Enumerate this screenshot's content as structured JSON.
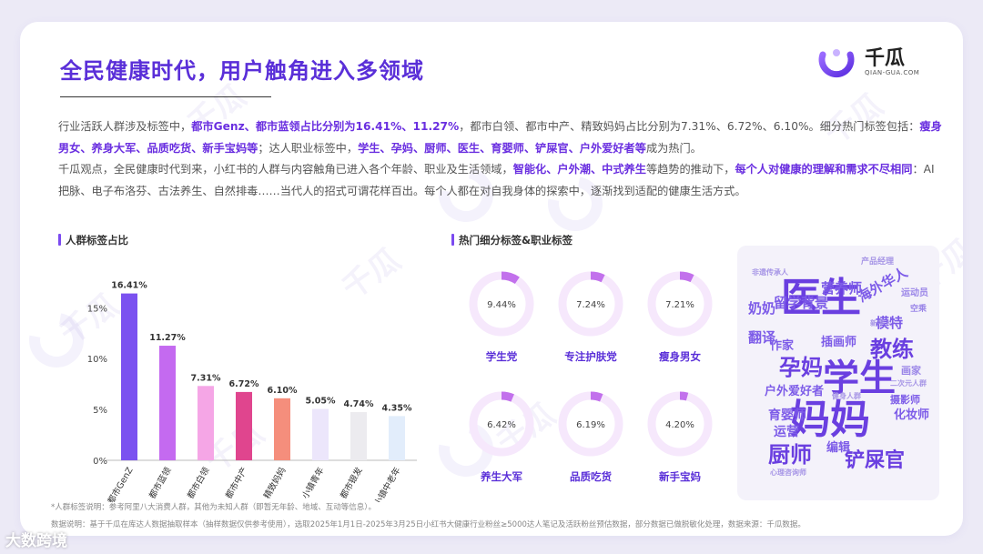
{
  "page": {
    "title": "全民健康时代，用户触角进入多领域",
    "logo": {
      "cn": "千瓜",
      "en": "QIAN-GUA.COM"
    },
    "watermark_text": "千瓜",
    "paragraph_segments": [
      {
        "t": "行业活跃人群涉及标签中，",
        "hl": false
      },
      {
        "t": "都市Genz、都市蓝领占比分别为16.41%、11.27%",
        "hl": true
      },
      {
        "t": "，都市白领、都市中产、精致妈妈占比分别为7.31%、6.72%、6.10%。细分热门标签包括：",
        "hl": false
      },
      {
        "t": "瘦身男女、养身大军、品质吃货、新手宝妈等",
        "hl": true
      },
      {
        "t": "；达人职业标签中，",
        "hl": false
      },
      {
        "t": "学生、孕妈、厨师、医生、育婴师、铲屎官、户外爱好者等",
        "hl": true
      },
      {
        "t": "成为热门。",
        "hl": false
      },
      {
        "t": "\n千瓜观点，全民健康时代到来，小红书的人群与内容触角已进入各个年龄、职业及生活领域，",
        "hl": false
      },
      {
        "t": "智能化、户外潮、中式养生",
        "hl": true
      },
      {
        "t": "等趋势的推动下，",
        "hl": false
      },
      {
        "t": "每个人对健康的理解和需求不尽相同",
        "hl": true
      },
      {
        "t": "：AI把脉、电子布洛芬、古法养生、自然排毒……当代人的招式可谓花样百出。每个人都在对自我身体的探索中，逐渐找到适配的健康生活方式。",
        "hl": false
      }
    ],
    "section_left_title": "人群标签占比",
    "section_right_title": "热门细分标签&职业标签",
    "note1": "*人群标签说明：参考阿里八大消费人群，其他为未知人群（即暂无年龄、地域、互动等信息）。",
    "note2": "数据说明：基于千瓜在库达人数据抽取样本（抽样数据仅供参考使用），选取2025年1月1日-2025年3月25日小红书大健康行业粉丝≥5000达人笔记及活跃粉丝预估数据，部分数据已做脱敏化处理，数据来源：千瓜数据。",
    "source_mark": "大数跨境"
  },
  "chart_data": [
    {
      "type": "bar",
      "title": "人群标签占比",
      "categories": [
        "都市GenZ",
        "都市蓝领",
        "都市白领",
        "都市中产",
        "精致妈妈",
        "小镇青年",
        "都市银发",
        "小镇中老年"
      ],
      "values": [
        16.41,
        11.27,
        7.31,
        6.72,
        6.1,
        5.05,
        4.74,
        4.35
      ],
      "value_labels": [
        "16.41%",
        "11.27%",
        "7.31%",
        "6.72%",
        "6.10%",
        "5.05%",
        "4.74%",
        "4.35%"
      ],
      "colors": [
        "#7b52f0",
        "#c46af0",
        "#f5a6e6",
        "#e0458e",
        "#f58e7c",
        "#ece6fb",
        "#ecebef",
        "#e2edfb"
      ],
      "ylim": [
        0,
        17
      ],
      "yticks": [
        0,
        5,
        10,
        15
      ],
      "ytick_labels": [
        "0%",
        "5%",
        "10%",
        "15%"
      ],
      "xlabel": "",
      "ylabel": "",
      "grid": false
    },
    {
      "type": "pie",
      "title": "热门细分标签&职业标签",
      "items": [
        {
          "name": "学生党",
          "value": 9.44,
          "label": "9.44%"
        },
        {
          "name": "专注护肤党",
          "value": 7.24,
          "label": "7.24%"
        },
        {
          "name": "瘦身男女",
          "value": 7.21,
          "label": "7.21%"
        },
        {
          "name": "养生大军",
          "value": 6.42,
          "label": "6.42%"
        },
        {
          "name": "品质吃货",
          "value": 6.19,
          "label": "6.19%"
        },
        {
          "name": "新手宝妈",
          "value": 4.2,
          "label": "4.20%"
        }
      ],
      "ring_color": "#f6e8fc",
      "fill_color": "#c271ec"
    }
  ],
  "word_cloud": [
    {
      "w": "医生",
      "c": "#6a3fe0"
    },
    {
      "w": "学生",
      "c": "#6a3fe0"
    },
    {
      "w": "妈妈",
      "c": "#6a3fe0"
    },
    {
      "w": "教练",
      "c": "#6a3fe0"
    },
    {
      "w": "孕妈",
      "c": "#6a3fe0"
    },
    {
      "w": "厨师",
      "c": "#6a3fe0"
    },
    {
      "w": "铲屎官",
      "c": "#6a3fe0"
    },
    {
      "w": "海外华人",
      "c": "#7d5ce8"
    },
    {
      "w": "营养师",
      "c": "#7d5ce8"
    },
    {
      "w": "留学背景",
      "c": "#7d5ce8"
    },
    {
      "w": "奶奶",
      "c": "#7d5ce8"
    },
    {
      "w": "翻译",
      "c": "#7d5ce8"
    },
    {
      "w": "模特",
      "c": "#7d5ce8"
    },
    {
      "w": "插画师",
      "c": "#7d5ce8"
    },
    {
      "w": "作家",
      "c": "#7d5ce8"
    },
    {
      "w": "户外爱好者",
      "c": "#7d5ce8"
    },
    {
      "w": "育婴师",
      "c": "#7d5ce8"
    },
    {
      "w": "运营",
      "c": "#7d5ce8"
    },
    {
      "w": "编辑",
      "c": "#7d5ce8"
    },
    {
      "w": "化妆师",
      "c": "#7d5ce8"
    },
    {
      "w": "摄影师",
      "c": "#7d5ce8"
    },
    {
      "w": "画家",
      "c": "#9b86e8"
    },
    {
      "w": "运动员",
      "c": "#9b86e8"
    },
    {
      "w": "空乘",
      "c": "#9b86e8"
    },
    {
      "w": "产品经理",
      "c": "#a796e6"
    },
    {
      "w": "新手人",
      "c": "#a796e6"
    },
    {
      "w": "二次元人群",
      "c": "#a796e6"
    },
    {
      "w": "健身人群",
      "c": "#a796e6"
    },
    {
      "w": "心理咨询师",
      "c": "#a796e6"
    },
    {
      "w": "非遗传承人",
      "c": "#a796e6"
    }
  ]
}
